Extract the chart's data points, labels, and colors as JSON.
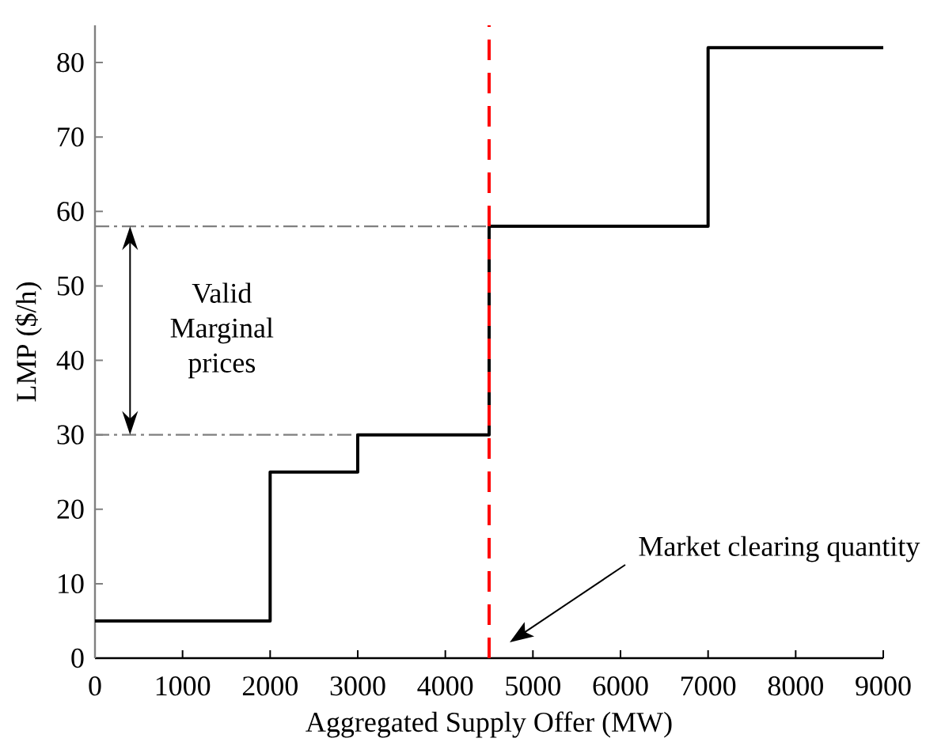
{
  "chart_data": {
    "type": "step",
    "xlabel": "Aggregated Supply Offer (MW)",
    "ylabel": "LMP ($/h)",
    "xlim": [
      0,
      9000
    ],
    "ylim": [
      0,
      85
    ],
    "xticks": [
      0,
      1000,
      2000,
      3000,
      4000,
      5000,
      6000,
      7000,
      8000,
      9000
    ],
    "yticks": [
      0,
      10,
      20,
      30,
      40,
      50,
      60,
      70,
      80
    ],
    "series": [
      {
        "type": "line",
        "color": "#7f7f7f",
        "line_style": "dashdot",
        "x": [
          0,
          4500
        ],
        "values": [
          58,
          58
        ]
      },
      {
        "type": "line",
        "color": "#7f7f7f",
        "line_style": "dashdot",
        "x": [
          0,
          4500
        ],
        "values": [
          30,
          30
        ]
      },
      {
        "color": "#000000",
        "x": [
          0,
          2000,
          3000,
          4500,
          7000,
          9000
        ],
        "values": [
          5,
          25,
          30,
          58,
          82,
          82
        ]
      }
    ],
    "ref_lines": [
      {
        "axis": "x",
        "value": 4500,
        "color": "#ff0000",
        "line_style": "dashed"
      }
    ],
    "annotations": [
      "Valid Marginal prices",
      "Market clearing quantity"
    ],
    "marker": "none",
    "grid": false
  }
}
